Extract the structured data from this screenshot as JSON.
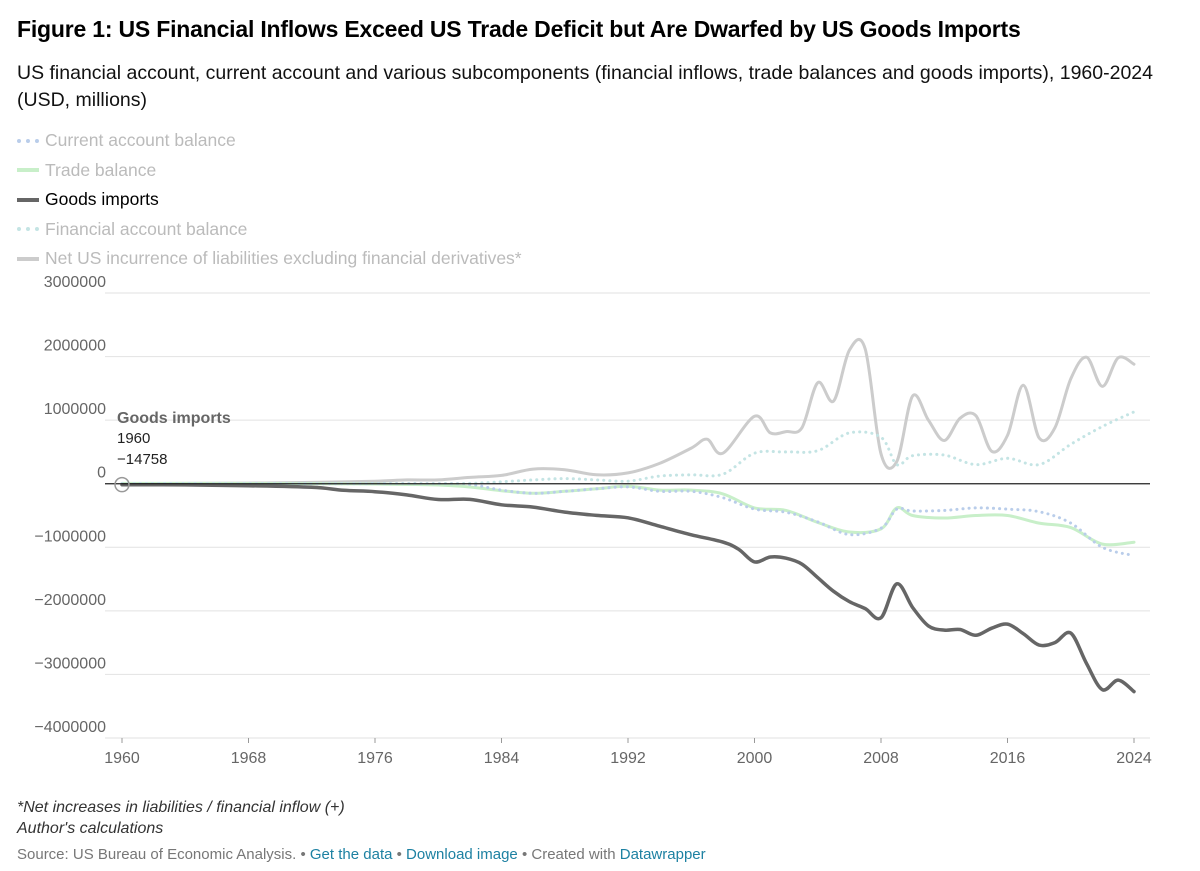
{
  "title": "Figure 1: US Financial Inflows Exceed US Trade Deficit but Are Dwarfed by US Goods Imports",
  "subtitle": "US financial account, current account and various subcomponents (financial inflows, trade balances and goods imports), 1960-2024 (USD, millions)",
  "legend": [
    {
      "label": "Current account balance",
      "color": "#b9cdea",
      "style": "dotted",
      "active": false
    },
    {
      "label": "Trade balance",
      "color": "#c8efc9",
      "style": "solid",
      "active": false
    },
    {
      "label": "Goods imports",
      "color": "#666666",
      "style": "solid",
      "active": true
    },
    {
      "label": "Financial account balance",
      "color": "#c4e4e4",
      "style": "dotted",
      "active": false
    },
    {
      "label": "Net US incurrence of liabilities excluding financial derivatives*",
      "color": "#cccccc",
      "style": "solid",
      "active": false
    }
  ],
  "tooltip": {
    "series": "Goods imports",
    "year": "1960",
    "value": "−14758"
  },
  "notes": {
    "line1": "*Net increases in liabilities / financial inflow (+)",
    "line2": "Author's calculations"
  },
  "source": {
    "prefix": "Source: US Bureau of Economic Analysis. • ",
    "get_data": "Get the data",
    "sep1": " • ",
    "download": "Download image",
    "sep2": " • Created with ",
    "datawrapper": "Datawrapper"
  },
  "chart_data": {
    "type": "line",
    "title": "Figure 1: US Financial Inflows Exceed US Trade Deficit but Are Dwarfed by US Goods Imports",
    "xlabel": "",
    "ylabel": "",
    "xlim": [
      1960,
      2024
    ],
    "ylim": [
      -4000000,
      3000000
    ],
    "x_ticks": [
      1960,
      1968,
      1976,
      1984,
      1992,
      2000,
      2008,
      2016,
      2024
    ],
    "y_ticks": [
      3000000,
      2000000,
      1000000,
      0,
      -1000000,
      -2000000,
      -3000000,
      -4000000
    ],
    "grid": true,
    "series": [
      {
        "name": "Current account balance",
        "x": [
          1960,
          1970,
          1980,
          1982,
          1984,
          1986,
          1988,
          1990,
          1992,
          1994,
          1996,
          1998,
          2000,
          2002,
          2004,
          2006,
          2008,
          2009,
          2010,
          2012,
          2014,
          2016,
          2018,
          2020,
          2022,
          2024
        ],
        "values": [
          3000,
          2000,
          2000,
          -10000,
          -100000,
          -150000,
          -120000,
          -80000,
          -50000,
          -120000,
          -120000,
          -220000,
          -400000,
          -450000,
          -600000,
          -800000,
          -700000,
          -400000,
          -430000,
          -420000,
          -380000,
          -400000,
          -440000,
          -620000,
          -1000000,
          -1130000
        ]
      },
      {
        "name": "Trade balance",
        "x": [
          1960,
          1970,
          1980,
          1984,
          1986,
          1988,
          1990,
          1992,
          1994,
          1996,
          1998,
          2000,
          2002,
          2004,
          2006,
          2008,
          2009,
          2010,
          2012,
          2014,
          2016,
          2018,
          2020,
          2022,
          2024
        ],
        "values": [
          5000,
          3000,
          -20000,
          -110000,
          -150000,
          -120000,
          -80000,
          -40000,
          -100000,
          -100000,
          -160000,
          -380000,
          -420000,
          -610000,
          -760000,
          -710000,
          -380000,
          -500000,
          -540000,
          -500000,
          -500000,
          -620000,
          -690000,
          -950000,
          -920000
        ]
      },
      {
        "name": "Goods imports",
        "x": [
          1960,
          1964,
          1968,
          1972,
          1974,
          1976,
          1978,
          1980,
          1982,
          1984,
          1986,
          1988,
          1990,
          1992,
          1994,
          1996,
          1998,
          1999,
          2000,
          2001,
          2002,
          2003,
          2004,
          2005,
          2006,
          2007,
          2008,
          2009,
          2010,
          2011,
          2012,
          2013,
          2014,
          2015,
          2016,
          2017,
          2018,
          2019,
          2020,
          2021,
          2022,
          2023,
          2024
        ],
        "values": [
          -14758,
          -19000,
          -32000,
          -56000,
          -103000,
          -125000,
          -176000,
          -249000,
          -247000,
          -332000,
          -368000,
          -447000,
          -498000,
          -536000,
          -669000,
          -803000,
          -918000,
          -1032000,
          -1230000,
          -1153000,
          -1172000,
          -1265000,
          -1478000,
          -1693000,
          -1854000,
          -1965000,
          -2110000,
          -1575000,
          -1947000,
          -2237000,
          -2303000,
          -2294000,
          -2385000,
          -2273000,
          -2208000,
          -2360000,
          -2538000,
          -2500000,
          -2350000,
          -2830000,
          -3240000,
          -3090000,
          -3270000
        ]
      },
      {
        "name": "Financial account balance",
        "x": [
          1960,
          1970,
          1980,
          1982,
          1984,
          1986,
          1988,
          1990,
          1992,
          1994,
          1996,
          1998,
          2000,
          2002,
          2004,
          2006,
          2008,
          2009,
          2010,
          2012,
          2014,
          2016,
          2018,
          2020,
          2022,
          2024
        ],
        "values": [
          0,
          0,
          0,
          5000,
          30000,
          60000,
          80000,
          60000,
          40000,
          120000,
          140000,
          150000,
          480000,
          500000,
          520000,
          800000,
          730000,
          300000,
          440000,
          450000,
          300000,
          400000,
          300000,
          620000,
          900000,
          1130000
        ]
      },
      {
        "name": "Net US incurrence of liabilities excluding financial derivatives*",
        "x": [
          1960,
          1964,
          1968,
          1972,
          1976,
          1978,
          1980,
          1982,
          1984,
          1986,
          1988,
          1990,
          1992,
          1994,
          1996,
          1997,
          1998,
          2000,
          2001,
          2002,
          2003,
          2004,
          2005,
          2006,
          2007,
          2008,
          2009,
          2010,
          2011,
          2012,
          2013,
          2014,
          2015,
          2016,
          2017,
          2018,
          2019,
          2020,
          2021,
          2022,
          2023,
          2024
        ],
        "values": [
          2000,
          5000,
          10000,
          20000,
          40000,
          60000,
          60000,
          100000,
          130000,
          230000,
          220000,
          140000,
          170000,
          320000,
          560000,
          700000,
          480000,
          1060000,
          800000,
          820000,
          880000,
          1590000,
          1300000,
          2100000,
          2120000,
          470000,
          350000,
          1380000,
          1000000,
          680000,
          1030000,
          1070000,
          510000,
          760000,
          1550000,
          720000,
          880000,
          1650000,
          1990000,
          1530000,
          1980000,
          1880000
        ]
      }
    ]
  }
}
